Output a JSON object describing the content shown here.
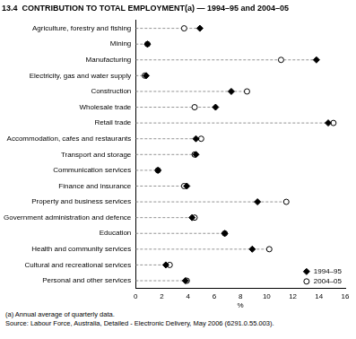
{
  "chart_data": {
    "type": "dot",
    "orientation": "horizontal",
    "title": "13.4  CONTRIBUTION TO TOTAL EMPLOYMENT(a) — 1994–95 and 2004–05",
    "x_label": "%",
    "footnotes": [
      "(a) Annual average of quarterly data.",
      "Source: Labour Force, Australia, Detailed - Electronic Delivery, May 2006 (6291.0.55.003)."
    ],
    "categories": [
      "Agriculture, forestry and fishing",
      "Mining",
      "Manufacturing",
      "Electricity, gas and water supply",
      "Construction",
      "Wholesale trade",
      "Retail trade",
      "Accommodation, cafes and restaurants",
      "Transport and storage",
      "Communication services",
      "Finance and insurance",
      "Property and business services",
      "Government administration and defence",
      "Education",
      "Health and community services",
      "Cultural and recreational services",
      "Personal and other services"
    ],
    "series": [
      {
        "name": "1994–95",
        "color": "#000000",
        "marker": "diamond",
        "values": [
          4.9,
          0.9,
          13.8,
          0.8,
          7.3,
          6.1,
          14.7,
          4.6,
          4.6,
          1.7,
          3.9,
          9.3,
          4.3,
          6.8,
          8.9,
          2.3,
          3.8
        ]
      },
      {
        "name": "2004–05",
        "color": "#000000",
        "marker": "circle_open",
        "values": [
          3.7,
          0.9,
          11.1,
          0.7,
          8.5,
          4.5,
          15.1,
          5.0,
          4.5,
          1.7,
          3.7,
          11.5,
          4.5,
          6.8,
          10.2,
          2.6,
          3.9
        ]
      }
    ],
    "xlim": [
      0,
      16
    ],
    "xticks": [
      0,
      2,
      4,
      6,
      8,
      10,
      12,
      14,
      16
    ],
    "grid": false,
    "legend": "lower right"
  }
}
